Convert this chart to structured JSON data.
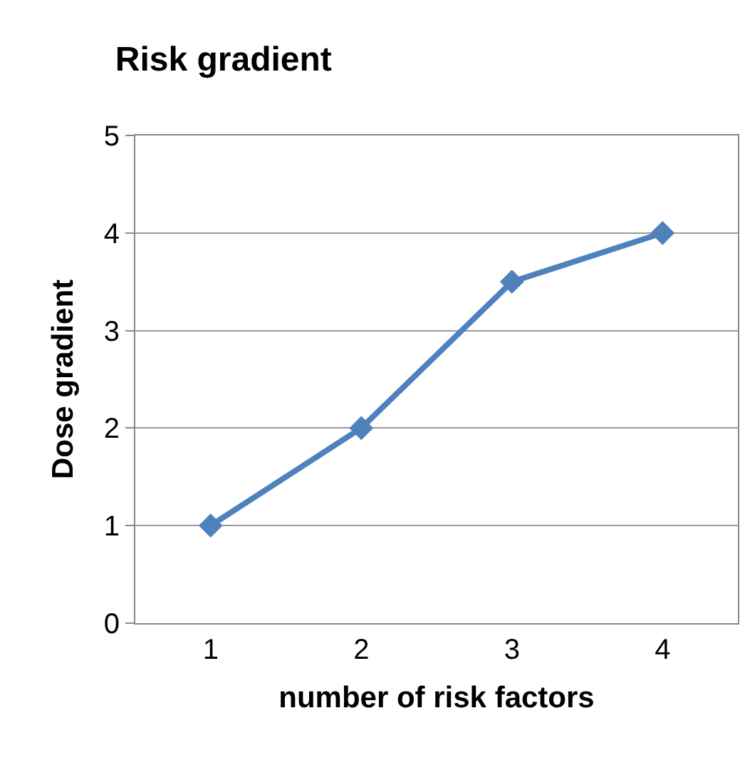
{
  "chart_data": {
    "type": "line",
    "title": "Risk gradient",
    "xlabel": "number of risk factors",
    "ylabel": "Dose gradient",
    "categories": [
      "1",
      "2",
      "3",
      "4"
    ],
    "series": [
      {
        "color": "#4f81bd",
        "values": [
          1,
          2,
          3.5,
          4
        ]
      }
    ],
    "ylim": [
      0,
      5
    ],
    "yticks": [
      0,
      1,
      2,
      3,
      4,
      5
    ],
    "grid": "y",
    "marker": "diamond",
    "line_style": "solid"
  }
}
